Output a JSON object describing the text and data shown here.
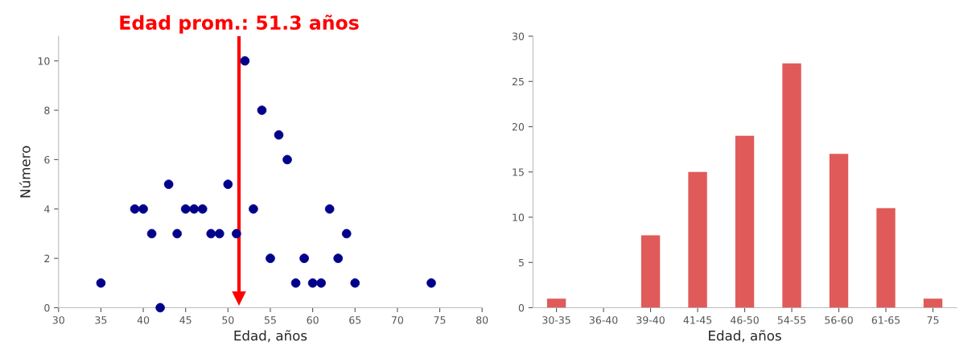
{
  "chart_data": [
    {
      "type": "scatter",
      "xlabel": "Edad, años",
      "ylabel": "Número",
      "marker": "circle",
      "grid": false,
      "legend": false,
      "x": [
        35,
        39,
        40,
        41,
        42,
        43,
        44,
        45,
        46,
        47,
        48,
        49,
        50,
        51,
        52,
        53,
        54,
        55,
        56,
        57,
        58,
        59,
        60,
        61,
        62,
        63,
        64,
        65,
        74
      ],
      "series": [
        {
          "color": "#00008b",
          "values": [
            1,
            4,
            4,
            3,
            0,
            5,
            3,
            4,
            4,
            4,
            3,
            3,
            5,
            3,
            10,
            4,
            8,
            2,
            7,
            6,
            1,
            2,
            1,
            1,
            4,
            2,
            3,
            1,
            1
          ]
        }
      ],
      "xlim": [
        30,
        80
      ],
      "xticks": [
        30,
        35,
        40,
        45,
        50,
        55,
        60,
        65,
        70,
        75,
        80
      ],
      "ylim": [
        0,
        11
      ],
      "yticks": [
        0,
        2,
        4,
        6,
        8,
        10
      ],
      "ref_lines": [
        {
          "axis": "x",
          "value": 51.3,
          "label": "Edad prom.: 51.3 años",
          "color": "#ff0000"
        }
      ]
    },
    {
      "type": "bar",
      "xlabel": "Edad, años",
      "grid": false,
      "legend": false,
      "categories": [
        "30-35",
        "36-40",
        "39-40",
        "41-45",
        "46-50",
        "54-55",
        "56-60",
        "61-65",
        "75"
      ],
      "series": [
        {
          "color": "#e05a5a",
          "values": [
            1,
            0,
            8,
            15,
            19,
            27,
            17,
            11,
            1
          ]
        }
      ],
      "ylim": [
        0,
        30
      ],
      "yticks": [
        0,
        5,
        10,
        15,
        20,
        25,
        30
      ]
    }
  ]
}
